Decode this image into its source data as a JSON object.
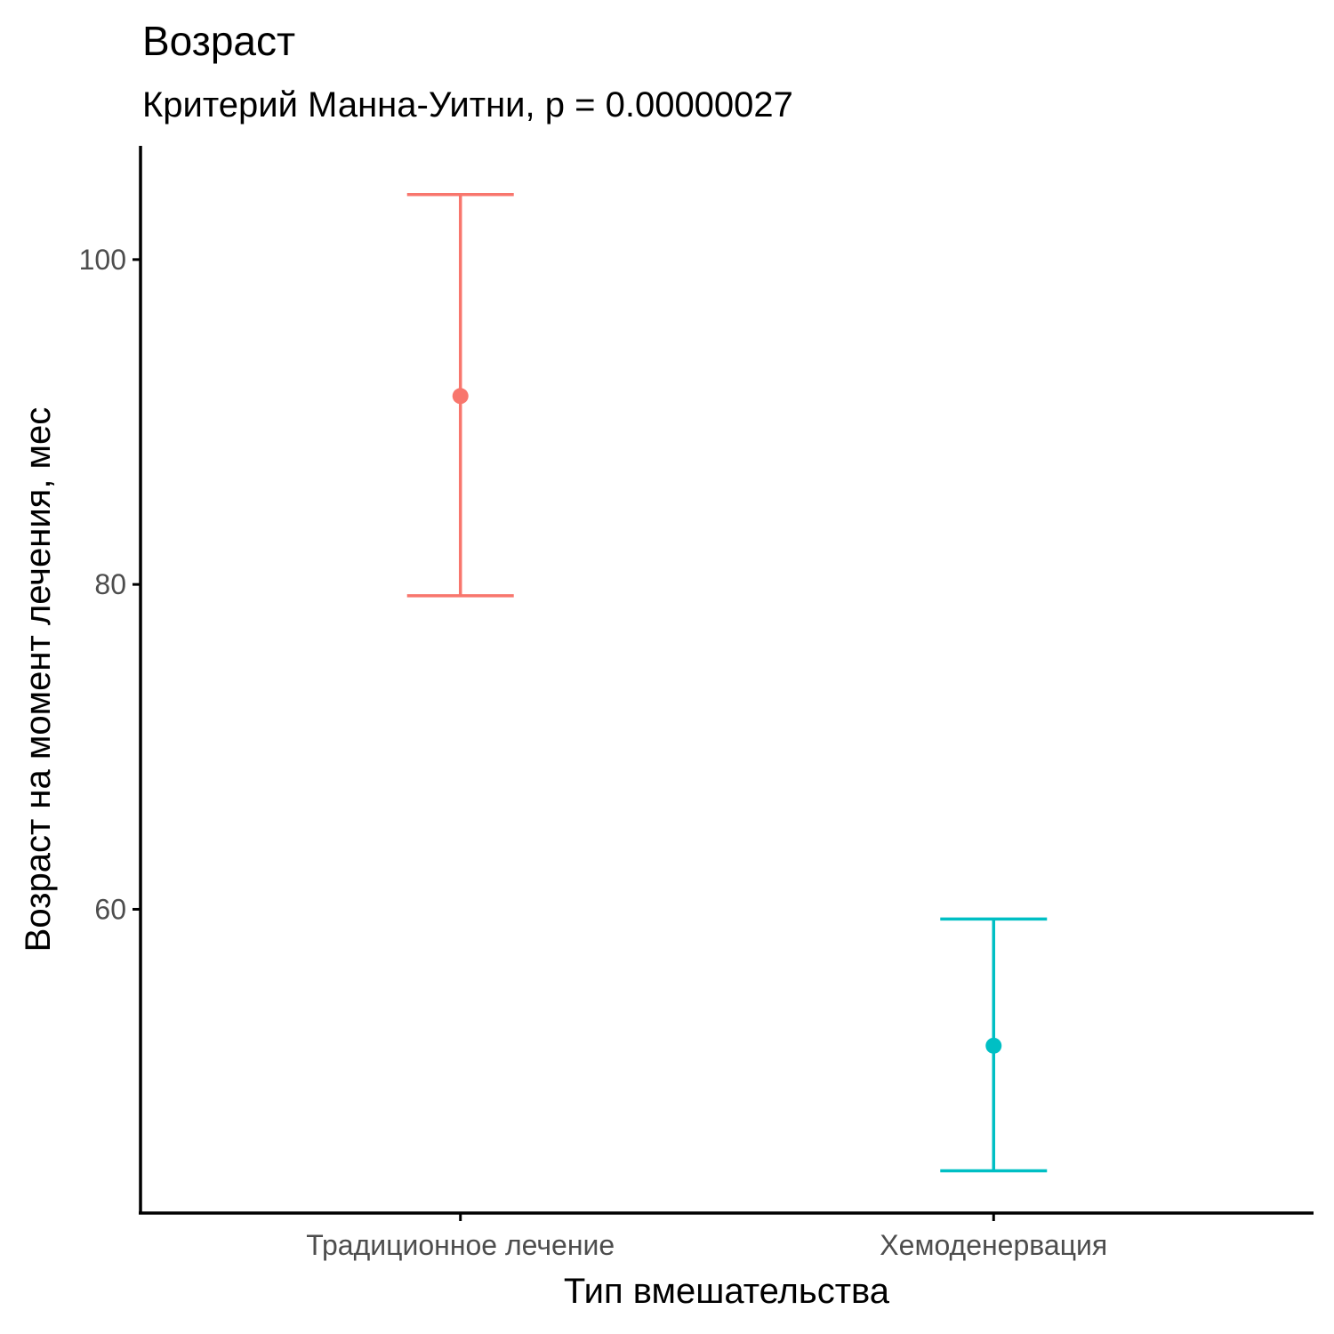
{
  "chart_data": {
    "type": "errorbar",
    "title": "Возраст",
    "subtitle": "Критерий Манна-Уитни, p = 0.00000027",
    "xlabel": "Тип вмешательства",
    "ylabel": "Возраст на момент лечения, мес",
    "categories": [
      "Традиционное лечение",
      "Хемоденервация"
    ],
    "series": [
      {
        "category": "Традиционное лечение",
        "mean": 91.6,
        "lower": 79.3,
        "upper": 104.0,
        "color": "#F8766D"
      },
      {
        "category": "Хемоденервация",
        "mean": 51.6,
        "lower": 43.9,
        "upper": 59.4,
        "color": "#00BFC4"
      }
    ],
    "y_ticks": [
      60,
      80,
      100
    ],
    "ylim": [
      41.3,
      107.0
    ],
    "grid": false,
    "legend": "none"
  }
}
